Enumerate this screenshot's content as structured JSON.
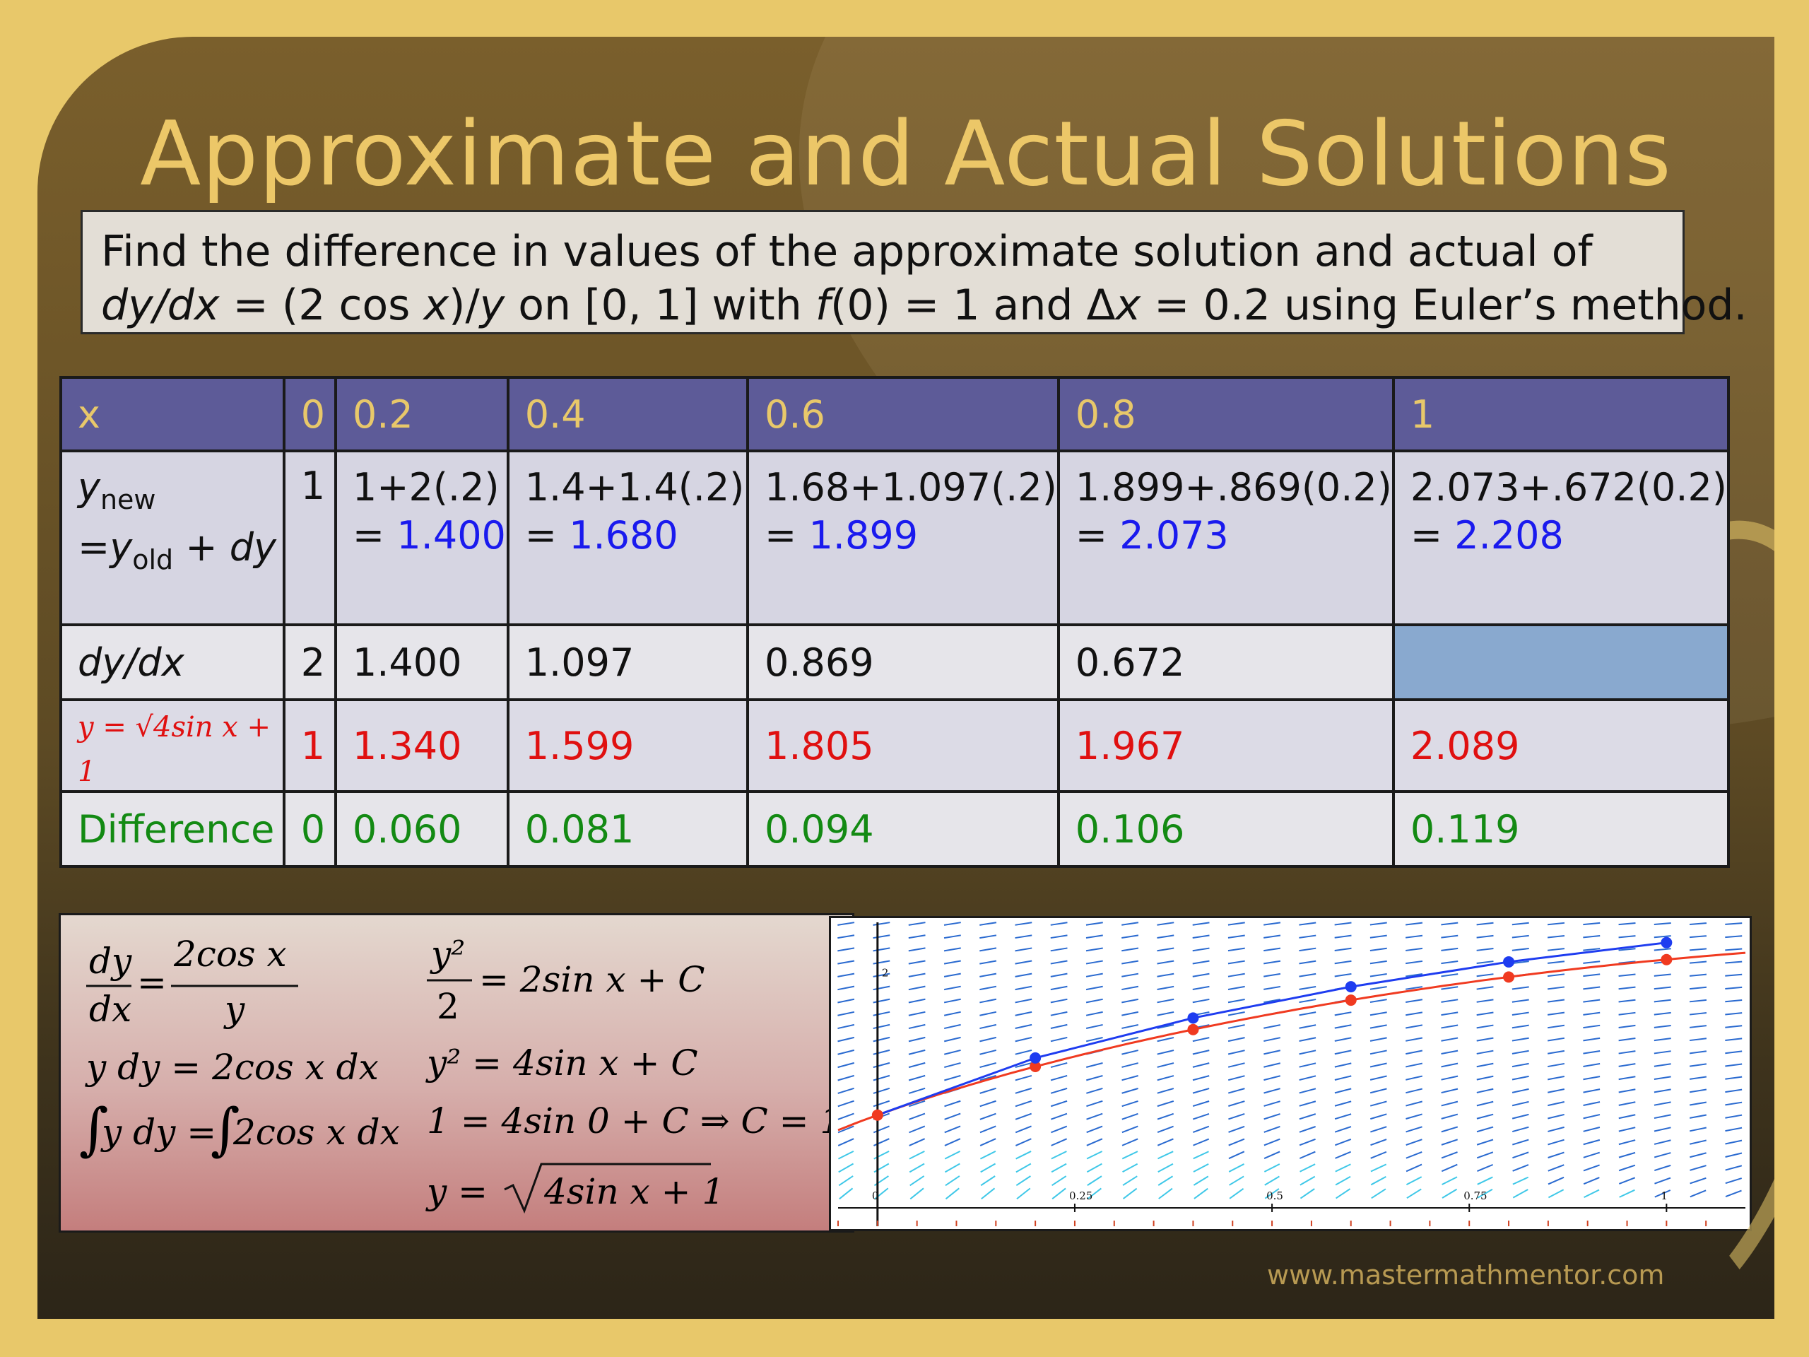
{
  "title": "Approximate and Actual Solutions",
  "prompt": {
    "line1": "Find the difference in values of the approximate solution and actual of",
    "line2_a": "dy/dx",
    "line2_b": " = (2 cos ",
    "line2_c": "x",
    "line2_d": ")/",
    "line2_e": "y",
    "line2_f": " on [0, 1] with ",
    "line2_g": "f",
    "line2_h": "(0) = 1 and Δ",
    "line2_i": "x",
    "line2_j": " = 0.2 using Euler’s method."
  },
  "table": {
    "header": {
      "label": "x",
      "values": [
        "0",
        "0.2",
        "0.4",
        "0.6",
        "0.8",
        "1"
      ]
    },
    "ynew": {
      "label_y": "y",
      "label_new": "new",
      "label_eq": "=y",
      "label_old": "old",
      "label_plus": " + ",
      "label_dy": "dy",
      "first": "1",
      "cells": [
        {
          "expr": "1+2(.2)",
          "result": "1.400"
        },
        {
          "expr": "1.4+1.4(.2)",
          "result": "1.680"
        },
        {
          "expr": "1.68+1.097(.2)",
          "result": "1.899"
        },
        {
          "expr": "1.899+.869(0.2)",
          "result": "2.073"
        },
        {
          "expr": "2.073+.672(0.2)",
          "result": "2.208"
        }
      ]
    },
    "dydx": {
      "label": "dy/dx",
      "values": [
        "2",
        "1.400",
        "1.097",
        "0.869",
        "0.672"
      ]
    },
    "exact": {
      "label": "y = √4sin x + 1",
      "values": [
        "1",
        "1.340",
        "1.599",
        "1.805",
        "1.967",
        "2.089"
      ]
    },
    "difference": {
      "label": "Difference",
      "values": [
        "0",
        "0.060",
        "0.081",
        "0.094",
        "0.106",
        "0.119"
      ]
    }
  },
  "work": {
    "eq1_lhs_num": "dy",
    "eq1_lhs_den": "dx",
    "eq1_rhs_num": "2cos x",
    "eq1_rhs_den": "y",
    "eq2": "y dy = 2cos x  dx",
    "eq3_a": "y dy = ",
    "eq3_b": "2cos x  dx",
    "eq4_num": "y²",
    "eq4_den": "2",
    "eq4_rhs": "= 2sin x + C",
    "eq5": "y² = 4sin x + C",
    "eq6": "1 = 4sin 0 + C ⇒ C = 1",
    "eq7_a": "y = ",
    "eq7_b": "4sin x + 1"
  },
  "chart_data": {
    "type": "line",
    "x_ticks": [
      "0",
      "0.25",
      "0.5",
      "0.75",
      "1"
    ],
    "y_ticks": [
      "2"
    ],
    "xlim": [
      -0.05,
      1.1
    ],
    "ylim": [
      0.35,
      2.35
    ],
    "series": [
      {
        "color": "#1e3cf0",
        "x": [
          0,
          0.2,
          0.4,
          0.6,
          0.8,
          1.0
        ],
        "y": [
          1.0,
          1.4,
          1.68,
          1.899,
          2.073,
          2.208
        ]
      },
      {
        "color": "#f03a20",
        "x": [
          0,
          0.2,
          0.4,
          0.6,
          0.8,
          1.0
        ],
        "y": [
          1.0,
          1.34,
          1.599,
          1.805,
          1.967,
          2.089
        ]
      }
    ],
    "slope_field": true
  },
  "website": "www.mastermathmentor.com"
}
